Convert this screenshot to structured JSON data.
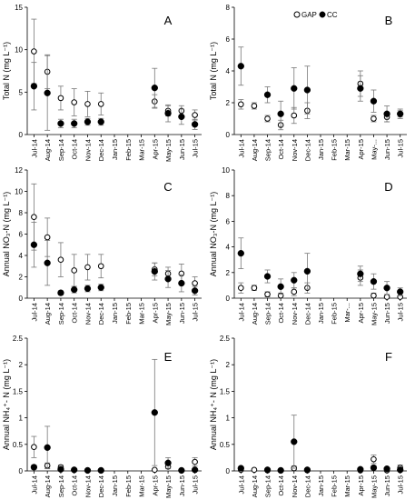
{
  "legend": {
    "gap_label": "GAP",
    "cc_label": "CC"
  },
  "chart_data": [
    {
      "type": "scatter",
      "panel_label": "A",
      "ylabel": "Total N (mg L⁻¹)",
      "ylim": [
        0,
        15
      ],
      "yticks": [
        0,
        5,
        10,
        15
      ],
      "categories": [
        "Jul-14",
        "Aug-14",
        "Sep-14",
        "Oct-14",
        "Nov-14",
        "Dec-14",
        "Jan-15",
        "Feb-15",
        "Mar-15",
        "Apr-15",
        "May-15",
        "Jun-15",
        "Jul-15"
      ],
      "series": [
        {
          "name": "GAP",
          "values": [
            9.8,
            7.4,
            4.3,
            3.8,
            3.6,
            3.6,
            null,
            null,
            null,
            3.9,
            2.8,
            2.8,
            2.3
          ],
          "errors": [
            3.8,
            2.0,
            1.4,
            1.6,
            1.5,
            1.3,
            null,
            null,
            null,
            0.8,
            0.6,
            0.6,
            0.6
          ]
        },
        {
          "name": "CC",
          "values": [
            5.7,
            4.9,
            1.3,
            1.3,
            1.5,
            1.5,
            null,
            null,
            null,
            5.5,
            2.5,
            2.1,
            1.2
          ],
          "errors": [
            2.8,
            4.4,
            0.5,
            0.5,
            0.4,
            0.4,
            null,
            null,
            null,
            2.3,
            1.0,
            0.9,
            0.6
          ]
        }
      ]
    },
    {
      "type": "scatter",
      "panel_label": "B",
      "ylabel": "Total N (mg L⁻¹)",
      "ylim": [
        0,
        8
      ],
      "yticks": [
        0,
        2,
        4,
        6,
        8
      ],
      "categories": [
        "Jul-14",
        "Aug-14",
        "Sep-14",
        "Oct-14",
        "Nov-14",
        "Dec-14",
        "Jan-15",
        "Feb-15",
        "Mar-15",
        "Apr-15",
        "May-...",
        "Jun-15",
        "Jul-15"
      ],
      "series": [
        {
          "name": "GAP",
          "values": [
            1.9,
            1.8,
            1.0,
            0.6,
            1.2,
            1.5,
            null,
            null,
            null,
            3.2,
            1.0,
            1.1,
            1.3
          ],
          "errors": [
            0.3,
            0.2,
            0.2,
            0.3,
            0.5,
            0.5,
            null,
            null,
            null,
            0.8,
            0.2,
            0.3,
            0.2
          ]
        },
        {
          "name": "CC",
          "values": [
            4.3,
            null,
            2.5,
            1.3,
            2.9,
            2.8,
            null,
            null,
            null,
            2.9,
            2.1,
            1.3,
            1.3
          ],
          "errors": [
            1.2,
            null,
            0.5,
            0.8,
            1.3,
            1.5,
            null,
            null,
            null,
            0.8,
            0.7,
            0.5,
            0.3
          ]
        }
      ]
    },
    {
      "type": "scatter",
      "panel_label": "C",
      "ylabel": "Annual NO₃-N (mg L⁻¹)",
      "ylim": [
        0,
        12
      ],
      "yticks": [
        0,
        2,
        4,
        6,
        8,
        10,
        12
      ],
      "categories": [
        "Jul-14",
        "Aug-14",
        "Sep-14",
        "Oct-14",
        "Nov-14",
        "Dec-14",
        "Jan-15",
        "Feb-15",
        "Mar-15",
        "Apr-15",
        "May-15",
        "Jun-15",
        "Jul-15"
      ],
      "series": [
        {
          "name": "GAP",
          "values": [
            7.6,
            5.7,
            3.6,
            2.6,
            2.9,
            3.0,
            null,
            null,
            null,
            2.7,
            2.3,
            2.3,
            1.4
          ],
          "errors": [
            3.1,
            1.8,
            1.6,
            1.5,
            1.2,
            1.1,
            null,
            null,
            null,
            0.6,
            0.6,
            0.9,
            0.6
          ]
        },
        {
          "name": "CC",
          "values": [
            5.0,
            3.3,
            0.5,
            0.8,
            0.9,
            1.0,
            null,
            null,
            null,
            2.5,
            1.8,
            1.4,
            0.7
          ],
          "errors": [
            2.1,
            2.1,
            0.2,
            0.3,
            0.3,
            0.3,
            null,
            null,
            null,
            0.8,
            0.8,
            0.8,
            0.4
          ]
        }
      ]
    },
    {
      "type": "scatter",
      "panel_label": "D",
      "ylabel": "Annual NO₃-N (mg L⁻¹)",
      "ylim": [
        0,
        10
      ],
      "yticks": [
        0,
        2,
        4,
        6,
        8,
        10
      ],
      "categories": [
        "Jul-14",
        "Aug-14",
        "Sep-14",
        "Oct-14",
        "Nov-14",
        "Dec-14",
        "Jan-15",
        "Feb-15",
        "Mar-...",
        "Apr-15",
        "May-15",
        "Jun-15",
        "Jul-15"
      ],
      "series": [
        {
          "name": "GAP",
          "values": [
            0.8,
            0.8,
            0.3,
            0.2,
            0.5,
            0.8,
            null,
            null,
            null,
            1.6,
            0.2,
            0.1,
            0.1
          ],
          "errors": [
            0.4,
            0.2,
            0.2,
            0.2,
            0.3,
            0.4,
            null,
            null,
            null,
            0.6,
            0.2,
            0.1,
            0.1
          ]
        },
        {
          "name": "CC",
          "values": [
            3.5,
            null,
            1.7,
            0.9,
            1.4,
            2.1,
            null,
            null,
            null,
            1.9,
            1.3,
            0.8,
            0.5
          ],
          "errors": [
            1.2,
            null,
            0.5,
            0.6,
            0.6,
            1.4,
            null,
            null,
            null,
            0.6,
            0.6,
            0.5,
            0.3
          ]
        }
      ]
    },
    {
      "type": "scatter",
      "panel_label": "E",
      "ylabel": "Annual NH₄⁺- N (mg L⁻¹)",
      "ylim": [
        0,
        2.5
      ],
      "yticks": [
        0,
        0.5,
        1,
        1.5,
        2,
        2.5
      ],
      "categories": [
        "Jul-14",
        "Aug-14",
        "Sep-14",
        "Oct-14",
        "Nov-14",
        "Dec-14",
        "Jan-15",
        "Feb-15",
        "Mar-15",
        "Apr-15",
        "May-15",
        "Jun-15",
        "Jul-15"
      ],
      "series": [
        {
          "name": "GAP",
          "values": [
            0.45,
            0.1,
            0.07,
            0.02,
            0.01,
            0.01,
            null,
            null,
            null,
            0.02,
            0.08,
            0.01,
            0.17
          ],
          "errors": [
            0.2,
            0.05,
            0.04,
            0.02,
            0.01,
            0.01,
            null,
            null,
            null,
            0.02,
            0.04,
            0.01,
            0.08
          ]
        },
        {
          "name": "CC",
          "values": [
            0.07,
            0.44,
            0.03,
            0.02,
            0.01,
            0.01,
            null,
            null,
            null,
            1.1,
            0.15,
            0.01,
            0.02
          ],
          "errors": [
            0.04,
            0.4,
            0.02,
            0.01,
            0.01,
            0.01,
            null,
            null,
            null,
            1.0,
            0.1,
            0.01,
            0.02
          ]
        }
      ]
    },
    {
      "type": "scatter",
      "panel_label": "F",
      "ylabel": "Annual NH₄⁺- N (mg L⁻¹)",
      "ylim": [
        0,
        2.5
      ],
      "yticks": [
        0,
        0.5,
        1,
        1.5,
        2,
        2.5
      ],
      "categories": [
        "Jul-14",
        "Aug-14",
        "Sep-14",
        "Oct-14",
        "Nov-14",
        "Dec-14",
        "Jan-15",
        "Feb-15",
        "Mar-15",
        "Apr-15",
        "May-15",
        "Jun-15",
        "Jul-15"
      ],
      "series": [
        {
          "name": "GAP",
          "values": [
            0.02,
            0.02,
            0.01,
            0.01,
            0.05,
            0.01,
            null,
            null,
            null,
            0.01,
            0.22,
            0.01,
            0.06
          ],
          "errors": [
            0.02,
            0.01,
            0.01,
            0.01,
            0.04,
            0.01,
            null,
            null,
            null,
            0.01,
            0.08,
            0.01,
            0.05
          ]
        },
        {
          "name": "CC",
          "values": [
            0.05,
            null,
            0.02,
            0.01,
            0.55,
            0.02,
            null,
            null,
            null,
            0.03,
            0.06,
            0.04,
            0.02
          ],
          "errors": [
            0.03,
            null,
            0.01,
            0.01,
            0.5,
            0.02,
            null,
            null,
            null,
            0.02,
            0.04,
            0.03,
            0.02
          ]
        }
      ]
    }
  ]
}
